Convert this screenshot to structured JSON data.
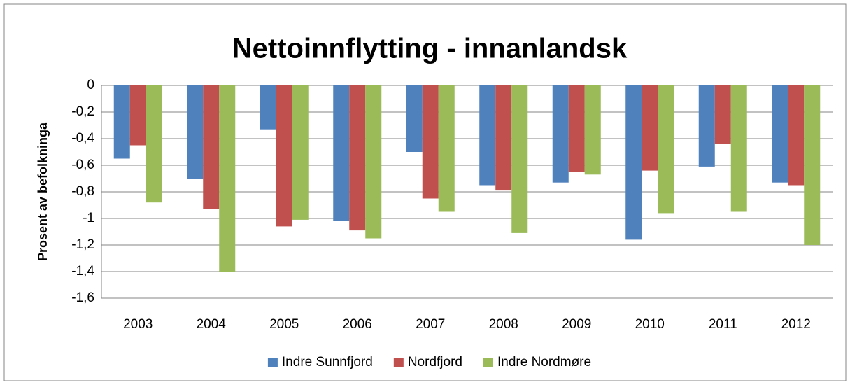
{
  "chart_data": {
    "type": "bar",
    "title": "Nettoinnflytting - innanlandsk",
    "y_label": "Prosent av befolkninga",
    "categories": [
      "2003",
      "2004",
      "2005",
      "2006",
      "2007",
      "2008",
      "2009",
      "2010",
      "2011",
      "2012"
    ],
    "series": [
      {
        "name": "Indre Sunnfjord",
        "color": "#4f81bd",
        "values": [
          -0.55,
          -0.7,
          -0.33,
          -1.02,
          -0.5,
          -0.75,
          -0.73,
          -1.16,
          -0.61,
          -0.73
        ]
      },
      {
        "name": "Nordfjord",
        "color": "#c0504d",
        "values": [
          -0.45,
          -0.93,
          -1.06,
          -1.09,
          -0.85,
          -0.79,
          -0.65,
          -0.64,
          -0.44,
          -0.75
        ]
      },
      {
        "name": "Indre Nordmøre",
        "color": "#9bbb59",
        "values": [
          -0.88,
          -1.4,
          -1.01,
          -1.15,
          -0.95,
          -1.11,
          -0.67,
          -0.96,
          -0.95,
          -1.2
        ]
      }
    ],
    "ylim": [
      -1.6,
      0
    ],
    "yticks": [
      0,
      {
        "value": -0.2,
        "label": "-0,2"
      },
      {
        "value": -0.4,
        "label": "-0,4"
      },
      {
        "value": -0.6,
        "label": "-0,6"
      },
      {
        "value": -0.8,
        "label": "-0,8"
      },
      -1,
      {
        "value": -1.2,
        "label": "-1,2"
      },
      {
        "value": -1.4,
        "label": "-1,4"
      },
      {
        "value": -1.6,
        "label": "-1,6"
      }
    ],
    "grid": true,
    "legend": "bottom"
  }
}
